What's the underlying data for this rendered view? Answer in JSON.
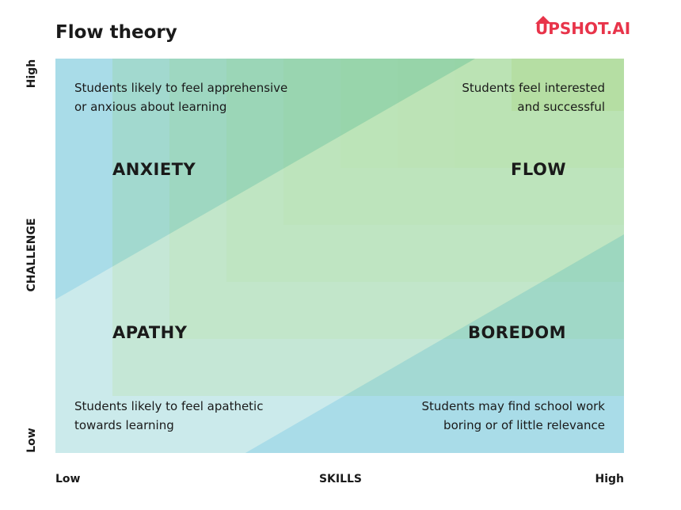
{
  "header": {
    "title": "Flow theory",
    "logo": "UPSHOT.AI"
  },
  "axes": {
    "y_label": "CHALLENGE",
    "y_high": "High",
    "y_low": "Low",
    "x_label": "SKILLS",
    "x_low": "Low",
    "x_high": "High"
  },
  "quadrants": [
    {
      "label": "ANXIETY",
      "description": [
        "Students likely to feel apprehensive",
        "or anxious about learning"
      ]
    },
    {
      "label": "FLOW",
      "description": [
        "Students feel interested",
        "and successful"
      ]
    },
    {
      "label": "APATHY",
      "description": [
        "Students likely to feel apathetic",
        "towards learning"
      ]
    },
    {
      "label": "BOREDOM",
      "description": [
        "Students may find school work",
        "boring or of little relevance"
      ]
    }
  ]
}
